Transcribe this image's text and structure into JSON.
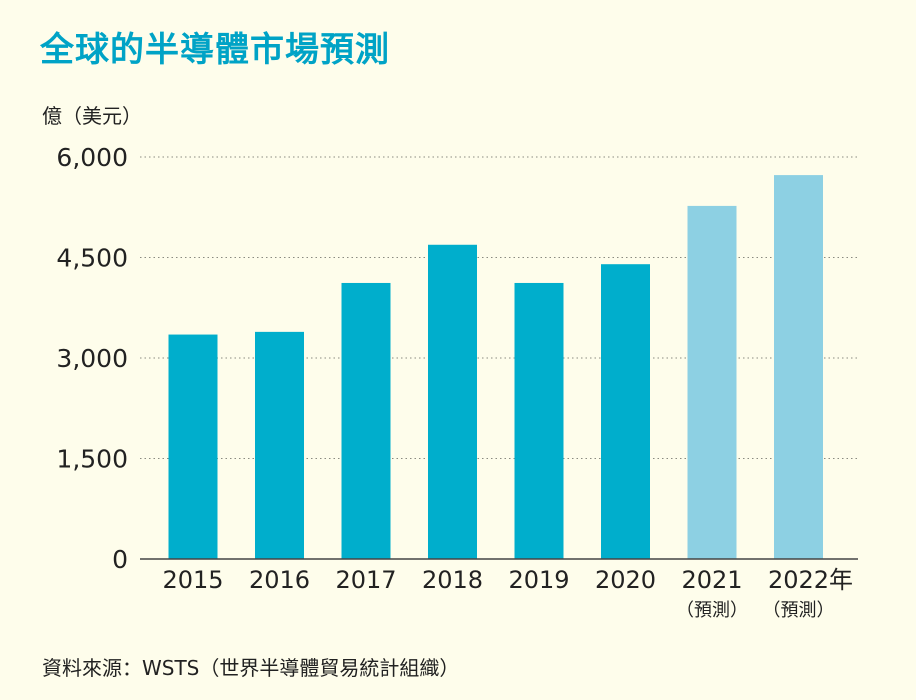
{
  "title": "全球的半導體市場預測",
  "unit_label": "億（美元）",
  "source": "資料來源：WSTS（世界半導體貿易統計組織）",
  "colors": {
    "actual": "#00aecc",
    "forecast": "#8dd0e3",
    "title": "#00a3c6"
  },
  "chart_data": {
    "type": "bar",
    "categories": [
      "2015",
      "2016",
      "2017",
      "2018",
      "2019",
      "2020",
      "2021",
      "2022年"
    ],
    "notes": [
      "",
      "",
      "",
      "",
      "",
      "",
      "（預測）",
      "（預測）"
    ],
    "values": [
      3350,
      3390,
      4120,
      4690,
      4120,
      4400,
      5270,
      5730
    ],
    "forecast": [
      false,
      false,
      false,
      false,
      false,
      false,
      true,
      true
    ],
    "ylabel": "億（美元）",
    "ylim": [
      0,
      6000
    ],
    "yticks": [
      0,
      1500,
      3000,
      4500,
      6000
    ],
    "ytick_labels": [
      "0",
      "1,500",
      "3,000",
      "4,500",
      "6,000"
    ],
    "grid": true
  }
}
